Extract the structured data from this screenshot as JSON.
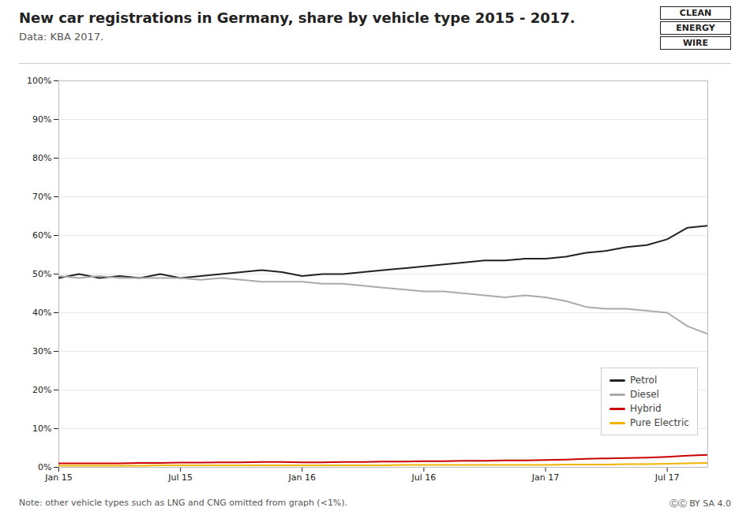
{
  "chart_data": {
    "type": "line",
    "title": "New car registrations in Germany, share by vehicle type 2015 - 2017.",
    "subtitle": "Data: KBA 2017.",
    "annotations": [
      "Note: other vehicle types such as LNG and CNG omitted from graph (<1%).",
      "ⒸⒸ  BY SA 4.0",
      "CLEAN",
      "ENERGY",
      "WIRE"
    ],
    "x": [
      0,
      1,
      2,
      3,
      4,
      5,
      6,
      7,
      8,
      9,
      10,
      11,
      12,
      13,
      14,
      15,
      16,
      17,
      18,
      19,
      20,
      21,
      22,
      23,
      24,
      25,
      26,
      27,
      28,
      29,
      30,
      31,
      32
    ],
    "xlim": [
      0,
      32
    ],
    "xticks": [
      {
        "value": 0,
        "label": "Jan 15"
      },
      {
        "value": 6,
        "label": "Jul 15"
      },
      {
        "value": 12,
        "label": "Jan 16"
      },
      {
        "value": 18,
        "label": "Jul 16"
      },
      {
        "value": 24,
        "label": "Jan 17"
      },
      {
        "value": 30,
        "label": "Jul 17"
      }
    ],
    "ylim": [
      0,
      1.0
    ],
    "yticks": [
      {
        "value": 0.0,
        "label": "0%"
      },
      {
        "value": 0.1,
        "label": "10%"
      },
      {
        "value": 0.2,
        "label": "20%"
      },
      {
        "value": 0.3,
        "label": "30%"
      },
      {
        "value": 0.4,
        "label": "40%"
      },
      {
        "value": 0.5,
        "label": "50%"
      },
      {
        "value": 0.6,
        "label": "60%"
      },
      {
        "value": 0.7,
        "label": "70%"
      },
      {
        "value": 0.8,
        "label": "80%"
      },
      {
        "value": 0.9,
        "label": "90%"
      },
      {
        "value": 1.0,
        "label": "100%"
      }
    ],
    "grid": true,
    "legend": "lower right",
    "series": [
      {
        "name": "Petrol",
        "color": "#222222",
        "values": [
          0.49,
          0.5,
          0.49,
          0.495,
          0.49,
          0.5,
          0.49,
          0.495,
          0.5,
          0.505,
          0.51,
          0.505,
          0.495,
          0.5,
          0.5,
          0.505,
          0.51,
          0.515,
          0.52,
          0.525,
          0.53,
          0.535,
          0.535,
          0.54,
          0.54,
          0.545,
          0.555,
          0.56,
          0.57,
          0.575,
          0.59,
          0.62,
          0.625
        ]
      },
      {
        "name": "Diesel",
        "color": "#aaaaaa",
        "values": [
          0.495,
          0.49,
          0.495,
          0.49,
          0.49,
          0.49,
          0.49,
          0.485,
          0.49,
          0.485,
          0.48,
          0.48,
          0.48,
          0.475,
          0.475,
          0.47,
          0.465,
          0.46,
          0.455,
          0.455,
          0.45,
          0.445,
          0.44,
          0.445,
          0.44,
          0.43,
          0.415,
          0.41,
          0.41,
          0.405,
          0.4,
          0.365,
          0.345
        ]
      },
      {
        "name": "Hybrid",
        "color": "#cc0000",
        "values": [
          0.01,
          0.01,
          0.01,
          0.01,
          0.011,
          0.011,
          0.012,
          0.012,
          0.013,
          0.013,
          0.014,
          0.014,
          0.013,
          0.013,
          0.014,
          0.014,
          0.015,
          0.015,
          0.016,
          0.016,
          0.017,
          0.017,
          0.018,
          0.018,
          0.019,
          0.02,
          0.022,
          0.023,
          0.024,
          0.025,
          0.027,
          0.03,
          0.032
        ]
      },
      {
        "name": "Pure Electric",
        "color": "#f0b400",
        "values": [
          0.004,
          0.004,
          0.004,
          0.004,
          0.004,
          0.005,
          0.005,
          0.005,
          0.005,
          0.005,
          0.005,
          0.005,
          0.005,
          0.005,
          0.005,
          0.005,
          0.005,
          0.006,
          0.006,
          0.006,
          0.006,
          0.006,
          0.006,
          0.006,
          0.006,
          0.007,
          0.007,
          0.007,
          0.008,
          0.008,
          0.009,
          0.01,
          0.011
        ]
      }
    ]
  }
}
